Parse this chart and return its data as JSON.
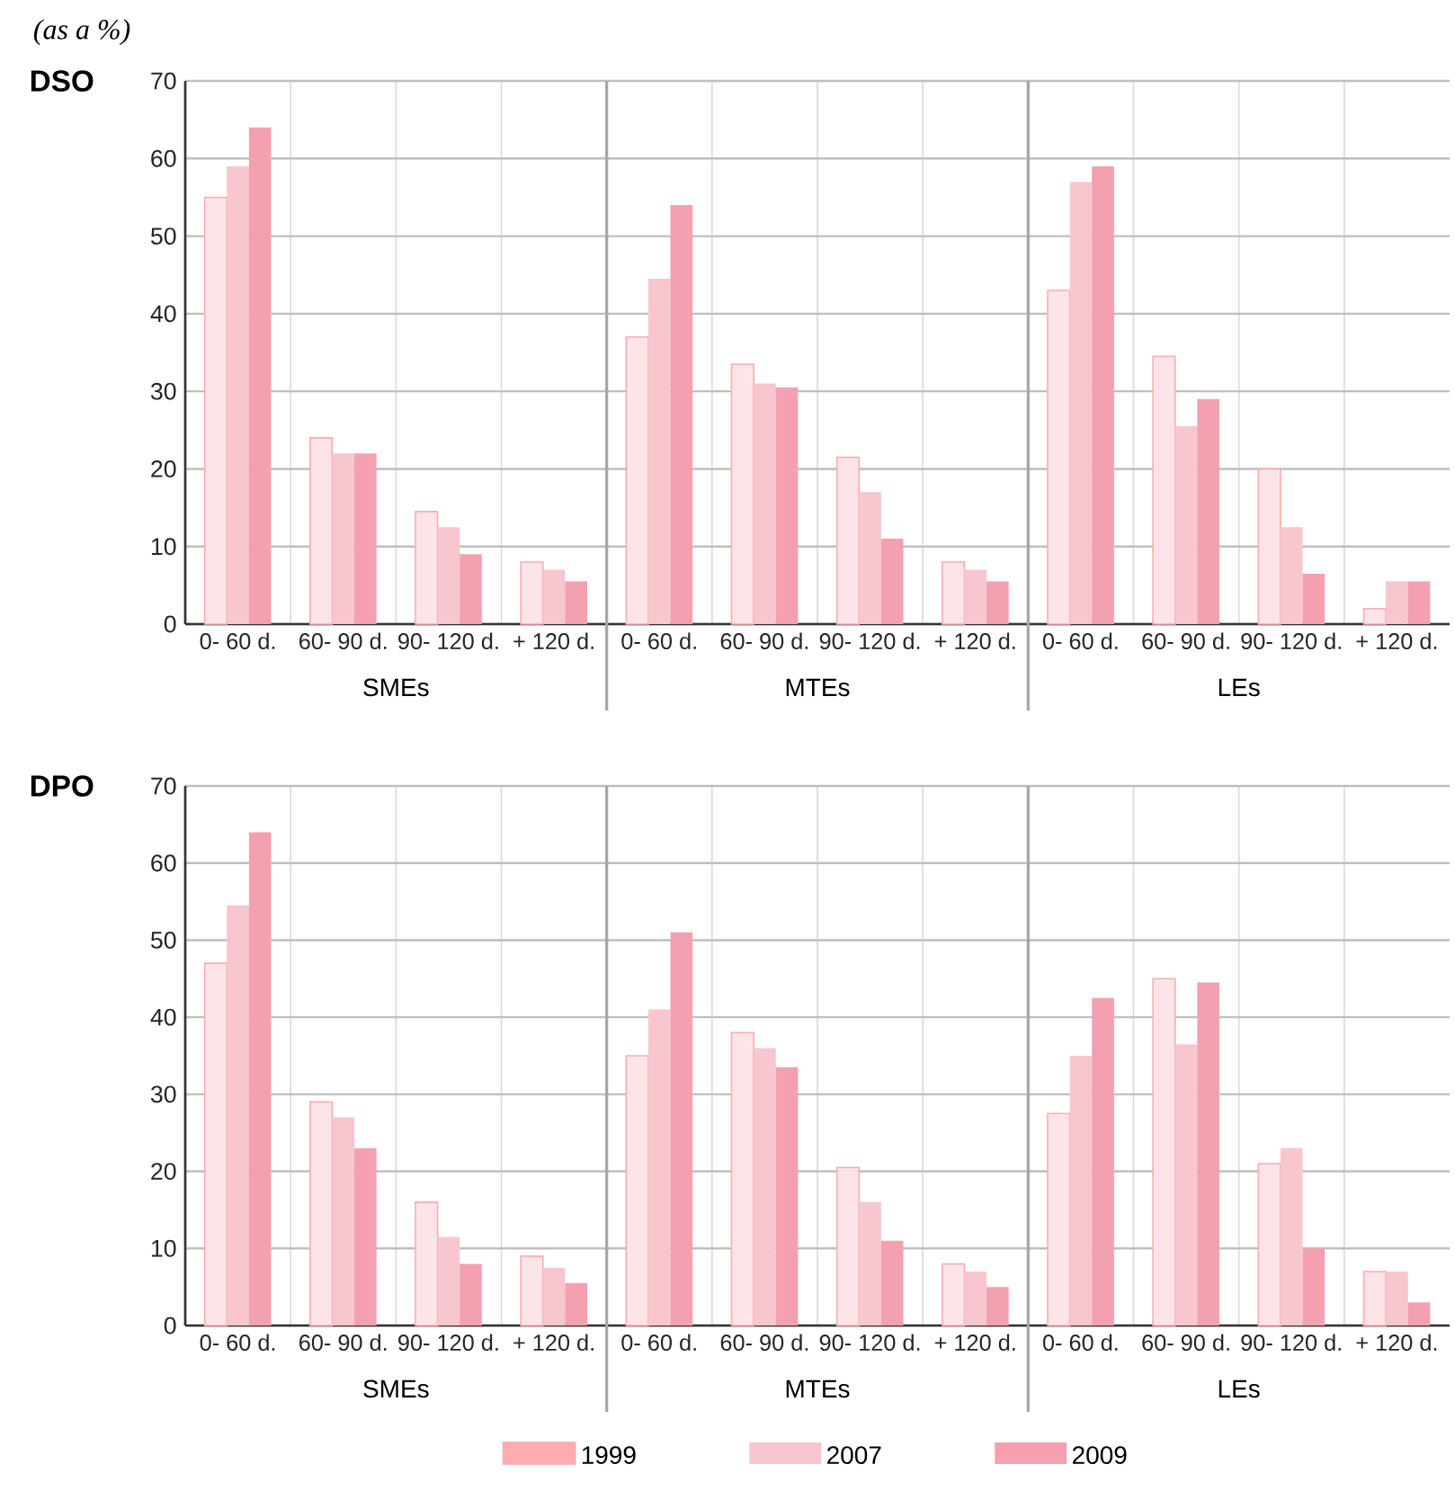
{
  "chart_data": [
    {
      "type": "bar",
      "title": "DSO",
      "ylabel": "(as a %)",
      "categories": [
        "0- 60 d.",
        "60- 90 d.",
        "90- 120 d.",
        "+ 120 d.",
        "0- 60 d.",
        "60- 90 d.",
        "90- 120 d.",
        "+ 120 d.",
        "0- 60 d.",
        "60- 90 d.",
        "90- 120 d.",
        "+ 120 d."
      ],
      "series": [
        {
          "color": "#fce4e8",
          "values": [
            55,
            24,
            14.5,
            8,
            37,
            33.5,
            21.5,
            8,
            43,
            34.5,
            20,
            2
          ]
        },
        {
          "color": "#f8c6cf",
          "values": [
            59,
            22,
            12.5,
            7,
            44.5,
            31,
            17,
            7,
            57,
            25.5,
            12.5,
            5.5
          ]
        },
        {
          "color": "#f4a0b0",
          "values": [
            64,
            22,
            9,
            5.5,
            54,
            30.5,
            11,
            5.5,
            59,
            29,
            6.5,
            5.5
          ]
        }
      ],
      "annotations": [
        "SMEs",
        "MTEs",
        "LEs"
      ],
      "ylim": [
        0,
        70
      ],
      "yticks": [
        0,
        10,
        20,
        30,
        40,
        50,
        60,
        70
      ],
      "grid": true,
      "legend": false
    },
    {
      "type": "bar",
      "title": "DPO",
      "categories": [
        "0- 60 d.",
        "60- 90 d.",
        "90- 120 d.",
        "+ 120 d.",
        "0- 60 d.",
        "60- 90 d.",
        "90- 120 d.",
        "+ 120 d.",
        "0- 60 d.",
        "60- 90 d.",
        "90- 120 d.",
        "+ 120 d."
      ],
      "series": [
        {
          "name": "1999",
          "color": "#fce4e8",
          "values": [
            47,
            29,
            16,
            9,
            35,
            38,
            20.5,
            8,
            27.5,
            45,
            21,
            7
          ]
        },
        {
          "name": "2007",
          "color": "#f8c6cf",
          "values": [
            54.5,
            27,
            11.5,
            7.5,
            41,
            36,
            16,
            7,
            35,
            36.5,
            23,
            7
          ]
        },
        {
          "name": "2009",
          "color": "#f4a0b0",
          "values": [
            64,
            23,
            8,
            5.5,
            51,
            33.5,
            11,
            5,
            42.5,
            44.5,
            10,
            3
          ]
        }
      ],
      "annotations": [
        "SMEs",
        "MTEs",
        "LEs"
      ],
      "ylim": [
        0,
        70
      ],
      "yticks": [
        0,
        10,
        20,
        30,
        40,
        50,
        60,
        70
      ],
      "grid": true,
      "legend": "bottom"
    }
  ]
}
